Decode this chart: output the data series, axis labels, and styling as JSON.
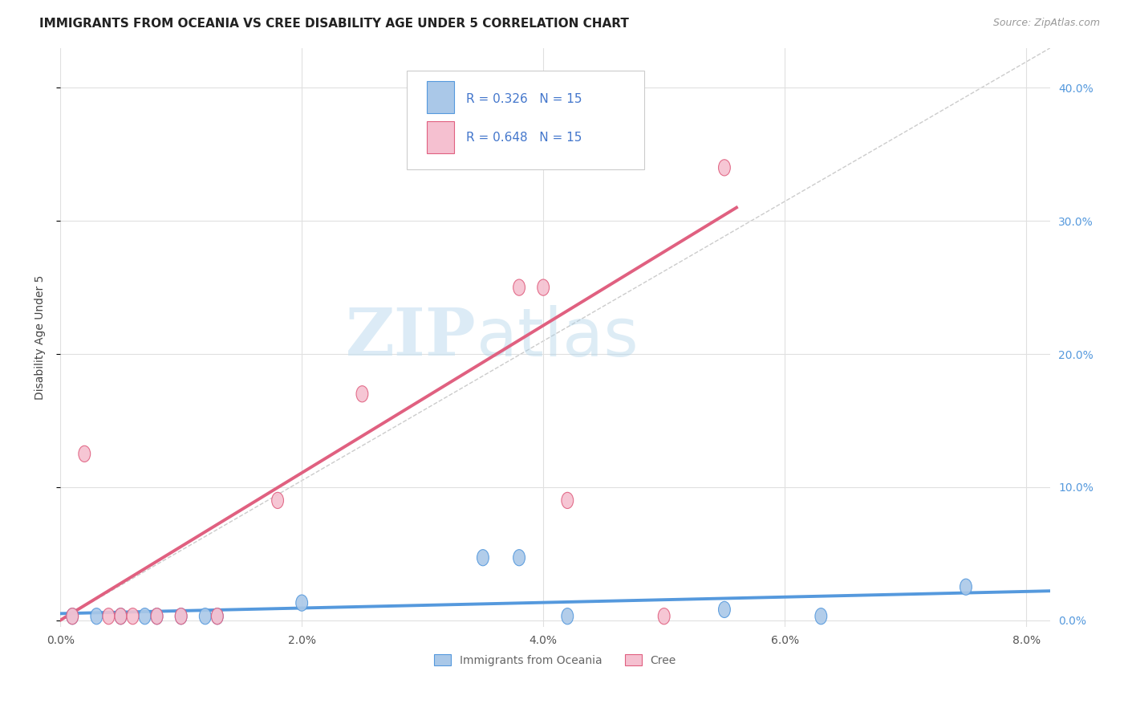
{
  "title": "IMMIGRANTS FROM OCEANIA VS CREE DISABILITY AGE UNDER 5 CORRELATION CHART",
  "source": "Source: ZipAtlas.com",
  "ylabel": "Disability Age Under 5",
  "xlim": [
    0.0,
    0.082
  ],
  "ylim": [
    -0.005,
    0.43
  ],
  "xticks": [
    0.0,
    0.02,
    0.04,
    0.06,
    0.08
  ],
  "yticks": [
    0.0,
    0.1,
    0.2,
    0.3,
    0.4
  ],
  "ytick_labels_right": [
    "0.0%",
    "10.0%",
    "20.0%",
    "30.0%",
    "40.0%"
  ],
  "xtick_labels": [
    "0.0%",
    "2.0%",
    "4.0%",
    "6.0%",
    "8.0%"
  ],
  "blue_R": "0.326",
  "blue_N": "15",
  "pink_R": "0.648",
  "pink_N": "15",
  "blue_color": "#aac8e8",
  "blue_edge_color": "#5599dd",
  "pink_color": "#f5c0d0",
  "pink_edge_color": "#e06080",
  "diagonal_color": "#cccccc",
  "legend_label_blue": "Immigrants from Oceania",
  "legend_label_pink": "Cree",
  "blue_points_x": [
    0.001,
    0.003,
    0.005,
    0.007,
    0.008,
    0.01,
    0.012,
    0.013,
    0.02,
    0.035,
    0.038,
    0.042,
    0.055,
    0.063,
    0.075
  ],
  "blue_points_y": [
    0.003,
    0.003,
    0.003,
    0.003,
    0.003,
    0.003,
    0.003,
    0.003,
    0.013,
    0.047,
    0.047,
    0.003,
    0.008,
    0.003,
    0.025
  ],
  "pink_points_x": [
    0.001,
    0.002,
    0.004,
    0.005,
    0.006,
    0.008,
    0.01,
    0.013,
    0.018,
    0.025,
    0.038,
    0.04,
    0.042,
    0.05,
    0.055
  ],
  "pink_points_y": [
    0.003,
    0.125,
    0.003,
    0.003,
    0.003,
    0.003,
    0.003,
    0.003,
    0.09,
    0.17,
    0.25,
    0.25,
    0.09,
    0.003,
    0.34
  ],
  "blue_line_x": [
    0.0,
    0.082
  ],
  "blue_line_y": [
    0.005,
    0.022
  ],
  "pink_line_x": [
    0.0,
    0.056
  ],
  "pink_line_y": [
    0.0,
    0.31
  ],
  "diag_line_x": [
    0.0,
    0.082
  ],
  "diag_line_y": [
    0.0,
    0.43
  ],
  "watermark_zip": "ZIP",
  "watermark_atlas": "atlas",
  "title_fontsize": 11,
  "axis_label_fontsize": 10,
  "tick_fontsize": 10,
  "legend_text_color": "#4477cc",
  "right_tick_color": "#5599dd"
}
